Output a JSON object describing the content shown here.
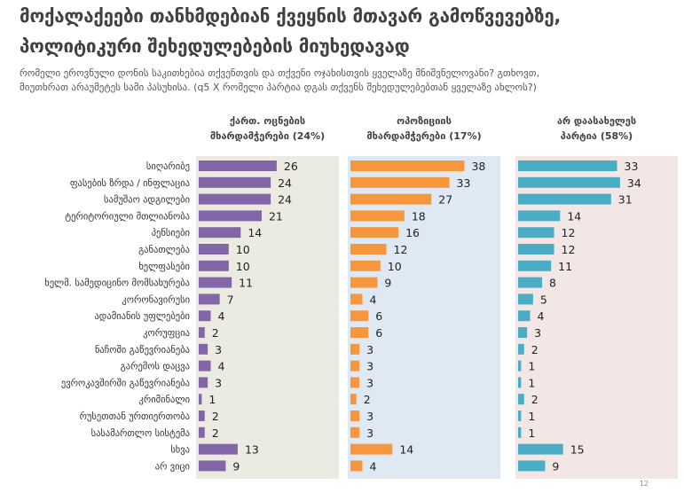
{
  "header": {
    "title_line1": "მოქალაქეები თანხმდებიან ქვეყნის მთავარ გამოწვევებზე,",
    "title_line2": "პოლიტიკური შეხედულებების მიუხედავად",
    "subtitle_line1": "რომელი ეროვნული დონის საკითხებია თქვენთვის და თქვენი ოჯახისთვის ყველაზე მნიშვნელოვანი? გთხოვთ,",
    "subtitle_line2": "მიუთხრათ არაუმეტეს სამი პასუხისა. (q5 X რომელი პარტია დგას თქვენს შეხედულებებთან ყველაზე ახლოს?)"
  },
  "page_number": "12",
  "chart_data": {
    "type": "bar",
    "orientation": "horizontal",
    "categories": [
      "სიღარიბე",
      "ფასების ზრდა / ინფლაცია",
      "სამუშაო ადგილები",
      "ტერიტორიული მთლიანობა",
      "პენსიები",
      "განათლება",
      "ხელფასები",
      "ხელმ. სამედიცინო მომსახურება",
      "კორონავირუსი",
      "ადამიანის უფლებები",
      "კორუფცია",
      "ნაჩოში გაწევრიანება",
      "გარემოს დაცვა",
      "ევროკავშირში გაწევრიანება",
      "კრიმინალი",
      "რუსეთთან ურთიერთობა",
      "სასამართლო სისტემა",
      "სხვა",
      "არ ვიცი"
    ],
    "series": [
      {
        "name_line1": "ქართ. ოცნების",
        "name_line2": "მხარდამჭერები (24%)",
        "color": "#8266a8",
        "panel_bg": "#ecebe1",
        "values": [
          26,
          24,
          24,
          21,
          14,
          10,
          10,
          11,
          7,
          4,
          2,
          3,
          4,
          3,
          1,
          2,
          2,
          13,
          9
        ]
      },
      {
        "name_line1": "ოპოზიციის",
        "name_line2": "მხარდამჭერები (17%)",
        "color": "#f7973d",
        "panel_bg": "#dfe9f4",
        "values": [
          38,
          33,
          27,
          18,
          16,
          12,
          10,
          9,
          4,
          6,
          6,
          3,
          3,
          3,
          2,
          3,
          3,
          14,
          4
        ]
      },
      {
        "name_line1": "არ დაასახელეს",
        "name_line2": "პარტია (58%)",
        "color": "#4bacc6",
        "panel_bg": "#f3e7e6",
        "values": [
          33,
          34,
          31,
          14,
          12,
          12,
          11,
          8,
          5,
          4,
          3,
          2,
          1,
          1,
          2,
          1,
          1,
          15,
          9
        ]
      }
    ],
    "xlim": [
      0,
      40
    ],
    "grid": false,
    "legend": "none"
  }
}
